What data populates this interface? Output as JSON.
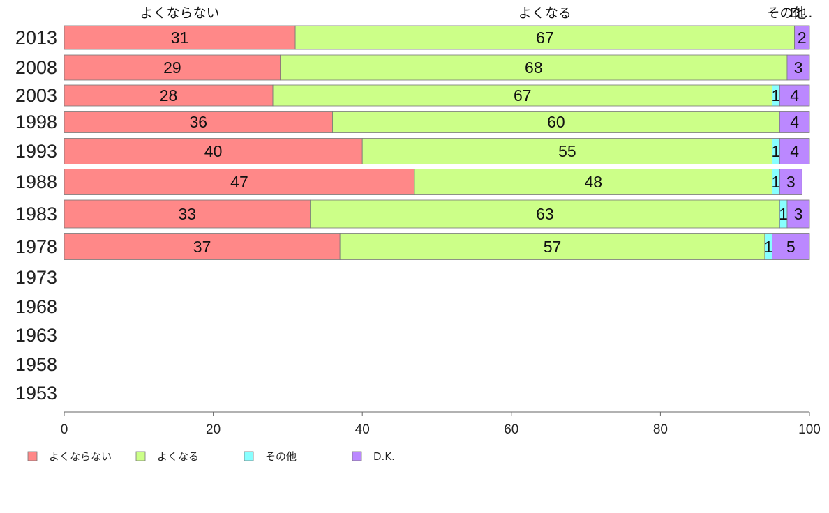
{
  "chart_data": {
    "type": "bar",
    "orientation": "horizontal",
    "stacked": true,
    "categories": [
      "2013",
      "2008",
      "2003",
      "1998",
      "1993",
      "1988",
      "1983",
      "1978",
      "1973",
      "1968",
      "1963",
      "1958",
      "1953"
    ],
    "series": [
      {
        "name": "よくならない",
        "color": "#ff8888",
        "values": [
          31,
          29,
          28,
          36,
          40,
          47,
          33,
          37,
          null,
          null,
          null,
          null,
          null
        ]
      },
      {
        "name": "よくなる",
        "color": "#ccff88",
        "values": [
          67,
          68,
          67,
          60,
          55,
          48,
          63,
          57,
          null,
          null,
          null,
          null,
          null
        ]
      },
      {
        "name": "その他",
        "color": "#88ffff",
        "values": [
          null,
          null,
          1,
          null,
          1,
          1,
          1,
          1,
          null,
          null,
          null,
          null,
          null
        ]
      },
      {
        "name": "D.K.",
        "color": "#bb88ff",
        "values": [
          2,
          3,
          4,
          4,
          4,
          3,
          3,
          5,
          null,
          null,
          null,
          null,
          null
        ]
      }
    ],
    "xlim": [
      0,
      100
    ],
    "xticks": [
      "0",
      "20",
      "40",
      "60",
      "80",
      "100"
    ],
    "column_headers": [
      "よくならない",
      "よくなる",
      "その他",
      "D..."
    ],
    "legend": {
      "position": "bottom-left",
      "items": [
        "よくならない",
        "よくなる",
        "その他",
        "D.K."
      ]
    },
    "grid": false
  }
}
